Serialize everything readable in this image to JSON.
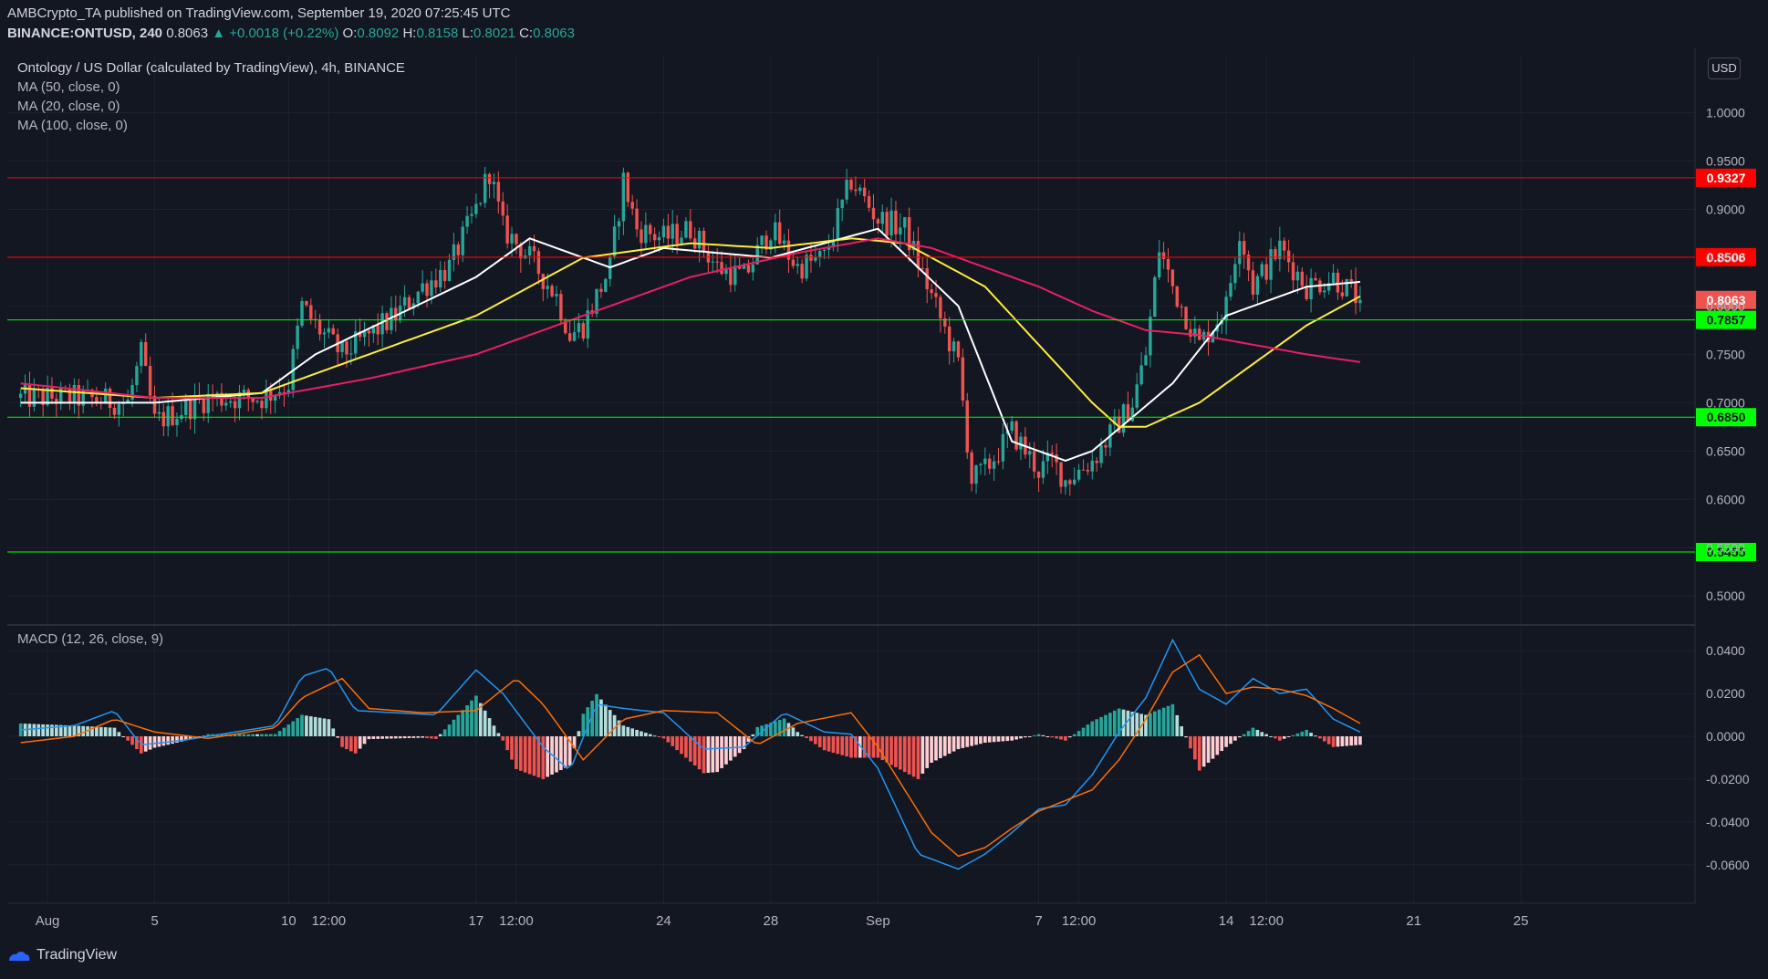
{
  "header": {
    "line1": "AMBCrypto_TA published on TradingView.com, September 19, 2020 07:25:45 UTC",
    "symbol": "BINANCE:ONTUSD, 240",
    "last": "0.8063",
    "change": "▲ +0.0018 (+0.22%)",
    "o_label": "O:",
    "o": "0.8092",
    "h_label": "H:",
    "h": "0.8158",
    "l_label": "L:",
    "l": "0.8021",
    "c_label": "C:",
    "c": "0.8063"
  },
  "legend": {
    "title": "Ontology / US Dollar (calculated by TradingView), 4h, BINANCE",
    "ma1": "MA (50, close, 0)",
    "ma2": "MA (20, close, 0)",
    "ma3": "MA (100, close, 0)",
    "macd": "MACD (12, 26, close, 9)"
  },
  "currency": "USD",
  "footer": {
    "brand": "TradingView"
  },
  "colors": {
    "background": "#131722",
    "grid": "#1e222d",
    "up": "#26a69a",
    "down": "#ef5350",
    "ma20": "#ffffff",
    "ma50": "#ffeb3b",
    "ma100": "#e91e63",
    "resistance": "#ff0000",
    "support": "#00ff00",
    "macd": "#2196f3",
    "signal": "#ff6d00"
  },
  "chart_data": [
    {
      "type": "candlestick",
      "title": "Ontology / US Dollar (calculated by TradingView), 4h, BINANCE",
      "ylim": [
        0.47,
        1.06
      ],
      "y_ticks": [
        "1.0000",
        "0.9500",
        "0.9000",
        "0.8500",
        "0.8000",
        "0.7500",
        "0.7000",
        "0.6500",
        "0.6000",
        "0.5500",
        "0.5000"
      ],
      "x_tick_labels": [
        "Aug",
        "5",
        "10",
        "12:00",
        "17",
        "12:00",
        "24",
        "28",
        "Sep",
        "7",
        "12:00",
        "14",
        "12:00",
        "21",
        "25"
      ],
      "x_tick_days": [
        1,
        5,
        10,
        11.5,
        17,
        18.5,
        24,
        28,
        32,
        38,
        39.5,
        45,
        46.5,
        52,
        56
      ],
      "date_range": [
        "2020-07-27",
        "2020-09-28"
      ],
      "last_close": 0.8063,
      "horizontal_levels": [
        {
          "value": 0.9327,
          "label": "0.9327",
          "color": "#ff0000"
        },
        {
          "value": 0.8506,
          "label": "0.8506",
          "color": "#ff0000"
        },
        {
          "value": 0.7857,
          "label": "0.7857",
          "color": "#00ff00"
        },
        {
          "value": 0.685,
          "label": "0.6850",
          "color": "#00ff00"
        },
        {
          "value": 0.5455,
          "label": "0.5455",
          "color": "#00ff00"
        }
      ],
      "price_path_days": [
        0,
        2,
        4,
        4.5,
        5,
        7,
        9,
        10,
        10.5,
        11,
        12,
        14,
        15,
        16,
        17,
        17.5,
        18,
        19,
        20,
        20.5,
        21,
        22,
        22.5,
        23,
        24,
        25,
        26,
        27,
        28,
        29,
        30,
        31,
        32,
        33,
        34,
        35,
        35.5,
        36,
        37,
        38,
        38.5,
        39,
        40,
        41,
        41.5,
        42,
        42.5,
        43,
        44,
        45,
        45.5,
        46,
        47,
        48,
        49,
        50
      ],
      "price_path_values": [
        0.705,
        0.705,
        0.7,
        0.75,
        0.68,
        0.705,
        0.705,
        0.72,
        0.8,
        0.78,
        0.75,
        0.79,
        0.82,
        0.84,
        0.9,
        0.94,
        0.88,
        0.85,
        0.81,
        0.77,
        0.78,
        0.84,
        0.93,
        0.88,
        0.87,
        0.88,
        0.84,
        0.83,
        0.88,
        0.84,
        0.85,
        0.93,
        0.89,
        0.88,
        0.81,
        0.74,
        0.62,
        0.63,
        0.67,
        0.63,
        0.64,
        0.62,
        0.64,
        0.68,
        0.7,
        0.75,
        0.86,
        0.82,
        0.76,
        0.8,
        0.88,
        0.82,
        0.86,
        0.82,
        0.83,
        0.806
      ],
      "ma_series": [
        {
          "name": "MA (20, close, 0)",
          "color": "#ffffff",
          "days": [
            0,
            5,
            9,
            11,
            14,
            17,
            19,
            22,
            24,
            28,
            32,
            35,
            37,
            39,
            40,
            43,
            45,
            48,
            50
          ],
          "values": [
            0.7,
            0.7,
            0.71,
            0.75,
            0.79,
            0.83,
            0.87,
            0.84,
            0.86,
            0.85,
            0.88,
            0.8,
            0.66,
            0.64,
            0.65,
            0.72,
            0.79,
            0.82,
            0.825
          ]
        },
        {
          "name": "MA (50, close, 0)",
          "color": "#ffeb3b",
          "days": [
            0,
            5,
            9,
            12,
            17,
            21,
            25,
            28,
            31,
            33,
            36,
            38,
            40,
            41,
            42,
            44,
            46,
            48,
            50
          ],
          "values": [
            0.715,
            0.705,
            0.71,
            0.74,
            0.79,
            0.85,
            0.865,
            0.86,
            0.87,
            0.865,
            0.82,
            0.76,
            0.7,
            0.675,
            0.675,
            0.7,
            0.74,
            0.78,
            0.81
          ]
        },
        {
          "name": "MA (100, close, 0)",
          "color": "#e91e63",
          "days": [
            0,
            5,
            9,
            13,
            17,
            21,
            25,
            29,
            32,
            34,
            36,
            38,
            40,
            42,
            44,
            46,
            48,
            50
          ],
          "values": [
            0.72,
            0.705,
            0.705,
            0.725,
            0.75,
            0.79,
            0.83,
            0.855,
            0.87,
            0.86,
            0.84,
            0.82,
            0.795,
            0.775,
            0.77,
            0.76,
            0.75,
            0.742
          ]
        }
      ]
    },
    {
      "type": "macd",
      "title": "MACD (12, 26, close, 9)",
      "ylim": [
        -0.078,
        0.052
      ],
      "y_ticks": [
        "0.0400",
        "0.0200",
        "0.0000",
        "-0.0200",
        "-0.0400",
        "-0.0600"
      ],
      "series": [
        {
          "name": "MACD",
          "color": "#2196f3",
          "days": [
            0,
            2,
            3.5,
            4.5,
            6,
            8,
            9.5,
            10.5,
            11.5,
            12.5,
            14,
            15.5,
            17,
            18,
            19.5,
            20.5,
            21.5,
            22.5,
            24,
            25.5,
            27,
            28.5,
            30,
            31,
            32,
            33.5,
            35,
            36,
            37,
            38,
            39,
            40,
            41,
            42,
            43,
            44,
            45,
            46,
            47,
            48,
            49,
            50
          ],
          "values": [
            0.003,
            0.005,
            0.012,
            -0.004,
            -0.002,
            0.002,
            0.005,
            0.028,
            0.032,
            0.012,
            0.011,
            0.01,
            0.031,
            0.02,
            -0.005,
            -0.016,
            0.015,
            0.013,
            0.011,
            -0.006,
            -0.005,
            0.011,
            0.002,
            0.001,
            -0.015,
            -0.055,
            -0.062,
            -0.055,
            -0.045,
            -0.034,
            -0.032,
            -0.018,
            0.002,
            0.018,
            0.045,
            0.022,
            0.015,
            0.027,
            0.02,
            0.022,
            0.008,
            0.002
          ]
        },
        {
          "name": "Signal",
          "color": "#ff6d00",
          "days": [
            0,
            2,
            3.5,
            5,
            7,
            9.5,
            10.5,
            12,
            13,
            15,
            17,
            18.5,
            19.5,
            21,
            22.5,
            24,
            26,
            27.5,
            29,
            31,
            32,
            34,
            35,
            36,
            37,
            38,
            40,
            41,
            42,
            43,
            44,
            45,
            46,
            47,
            48,
            49,
            50
          ],
          "values": [
            -0.003,
            0.0,
            0.008,
            0.002,
            -0.001,
            0.004,
            0.018,
            0.027,
            0.013,
            0.011,
            0.012,
            0.027,
            0.015,
            -0.011,
            0.008,
            0.012,
            0.011,
            -0.004,
            0.006,
            0.011,
            -0.005,
            -0.045,
            -0.056,
            -0.052,
            -0.043,
            -0.035,
            -0.025,
            -0.011,
            0.008,
            0.03,
            0.038,
            0.02,
            0.023,
            0.022,
            0.019,
            0.013,
            0.006
          ]
        }
      ]
    }
  ]
}
